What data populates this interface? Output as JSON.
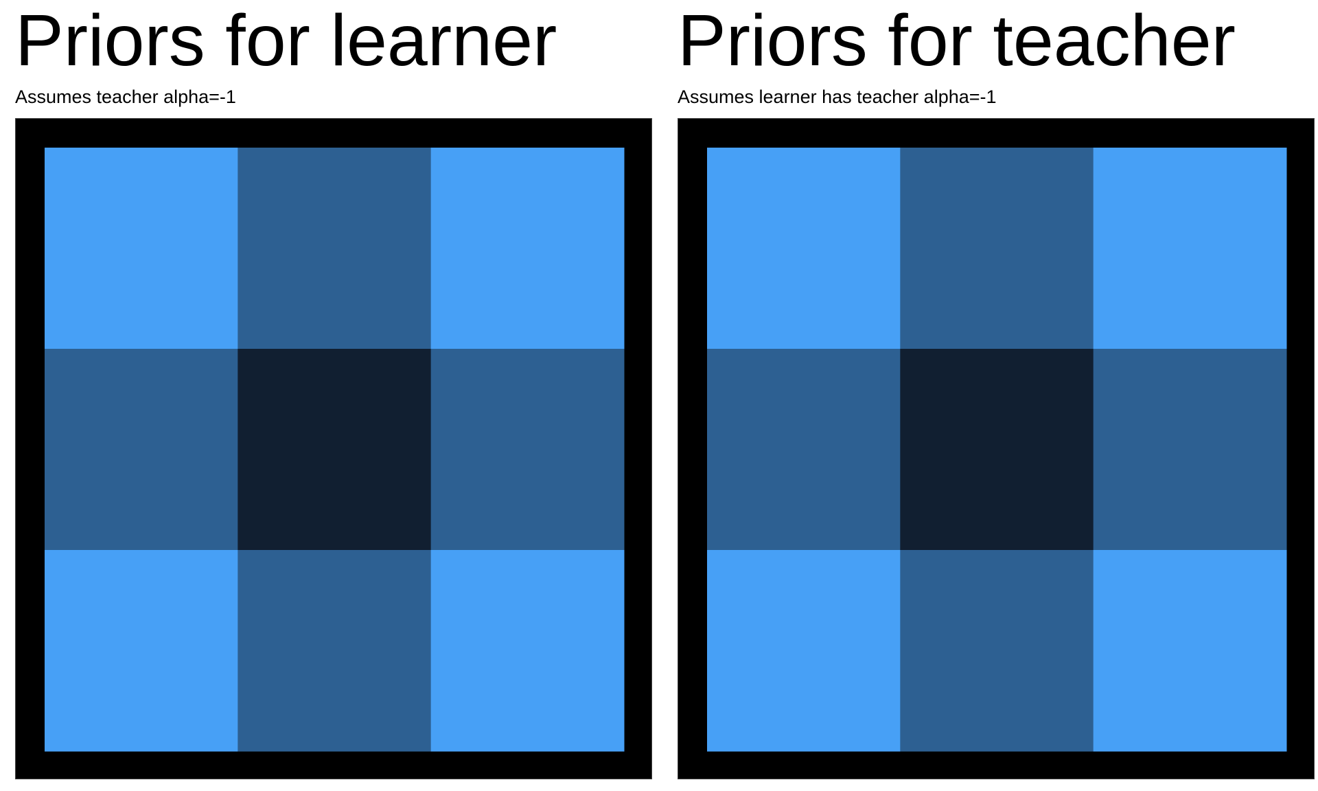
{
  "chart_data": [
    {
      "type": "heatmap",
      "title": "Priors for learner",
      "subtitle": "Assumes teacher alpha=-1",
      "rows": 3,
      "cols": 3,
      "values": [
        [
          3,
          2,
          3
        ],
        [
          2,
          1,
          2
        ],
        [
          3,
          2,
          3
        ]
      ],
      "colors": {
        "1": "#111f31",
        "2": "#2d6092",
        "3": "#47a0f6"
      },
      "frame_color": "#000000"
    },
    {
      "type": "heatmap",
      "title": "Priors for teacher",
      "subtitle": "Assumes learner has teacher alpha=-1",
      "rows": 3,
      "cols": 3,
      "values": [
        [
          3,
          2,
          3
        ],
        [
          2,
          1,
          2
        ],
        [
          3,
          2,
          3
        ]
      ],
      "colors": {
        "1": "#111f31",
        "2": "#2d6092",
        "3": "#47a0f6"
      },
      "frame_color": "#000000"
    }
  ]
}
